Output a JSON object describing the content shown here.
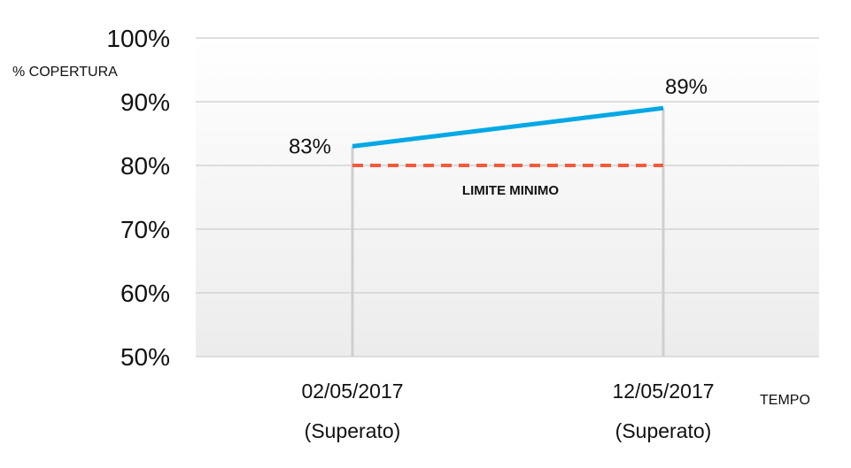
{
  "chart_data": {
    "type": "line",
    "ylabel": "% COPERTURA",
    "xlabel": "TEMPO",
    "ylim": [
      50,
      100
    ],
    "yticks": [
      "50%",
      "60%",
      "70%",
      "80%",
      "90%",
      "100%"
    ],
    "categories": [
      "02/05/2017",
      "12/05/2017"
    ],
    "category_sublabels": [
      "(Superato)",
      "(Superato)"
    ],
    "series": [
      {
        "values": [
          83,
          89
        ],
        "data_labels": [
          "83%",
          "89%"
        ],
        "color": "#00a8e6"
      }
    ],
    "threshold": {
      "label": "LIMITE MINIMO",
      "value": 80,
      "color": "#f25a3c"
    },
    "grid": true
  }
}
